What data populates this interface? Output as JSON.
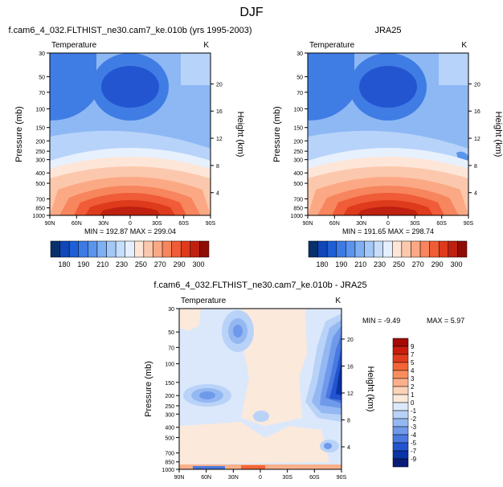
{
  "page": {
    "title": "DJF"
  },
  "chart_data": [
    {
      "type": "heatmap",
      "panel": "model",
      "title": "f.cam6_4_032.FLTHIST_ne30.cam7_ke.010b (yrs 1995-2003)",
      "subtitle_left": "Temperature",
      "subtitle_right": "K",
      "xlabel": "",
      "ylabel": "Pressure (mb)",
      "y2label": "Height (km)",
      "x_ticks": [
        "90N",
        "60N",
        "30N",
        "0",
        "30S",
        "60S",
        "90S"
      ],
      "y_ticks": [
        "30",
        "50",
        "70",
        "100",
        "150",
        "200",
        "250",
        "300",
        "400",
        "500",
        "700",
        "850",
        "1000"
      ],
      "y2_ticks": [
        "20",
        "16",
        "12",
        "8",
        "4"
      ],
      "stats": "MIN = 192.87  MAX = 299.04",
      "min": 192.87,
      "max": 299.04,
      "colorbar": {
        "orientation": "horizontal",
        "labels": [
          "180",
          "190",
          "210",
          "230",
          "250",
          "270",
          "290",
          "300"
        ]
      }
    },
    {
      "type": "heatmap",
      "panel": "obs",
      "title": "JRA25",
      "subtitle_left": "Temperature",
      "subtitle_right": "K",
      "xlabel": "",
      "ylabel": "Pressure (mb)",
      "y2label": "Height (km)",
      "x_ticks": [
        "90N",
        "60N",
        "30N",
        "0",
        "30S",
        "60S",
        "90S"
      ],
      "y_ticks": [
        "30",
        "50",
        "70",
        "100",
        "150",
        "200",
        "250",
        "300",
        "400",
        "500",
        "700",
        "850",
        "1000"
      ],
      "y2_ticks": [
        "20",
        "16",
        "12",
        "8",
        "4"
      ],
      "stats": "MIN = 191.65  MAX = 298.74",
      "min": 191.65,
      "max": 298.74,
      "colorbar": {
        "orientation": "horizontal",
        "labels": [
          "180",
          "190",
          "210",
          "230",
          "250",
          "270",
          "290",
          "300"
        ]
      }
    },
    {
      "type": "heatmap",
      "panel": "difference",
      "title": "f.cam6_4_032.FLTHIST_ne30.cam7_ke.010b - JRA25",
      "subtitle_left": "Temperature",
      "subtitle_right": "K",
      "xlabel": "",
      "ylabel": "Pressure (mb)",
      "y2label": "Height (km)",
      "x_ticks": [
        "90N",
        "60N",
        "30N",
        "0",
        "30S",
        "60S",
        "90S"
      ],
      "y_ticks": [
        "30",
        "50",
        "70",
        "100",
        "150",
        "200",
        "250",
        "300",
        "400",
        "500",
        "700",
        "850",
        "1000"
      ],
      "y2_ticks": [
        "20",
        "16",
        "12",
        "8",
        "4"
      ],
      "stats_min": "MIN =  -9.49",
      "stats_max": "MAX =   5.97",
      "min": -9.49,
      "max": 5.97,
      "colorbar": {
        "orientation": "vertical",
        "labels": [
          "9",
          "7",
          "5",
          "4",
          "3",
          "2",
          "1",
          "0",
          "-1",
          "-2",
          "-3",
          "-4",
          "-5",
          "-7",
          "-9"
        ]
      }
    }
  ],
  "colors": {
    "abs_scale": [
      "#08306b",
      "#1046b8",
      "#1f5fd6",
      "#3d7ae3",
      "#5a94ec",
      "#7fb0f3",
      "#a3c8f8",
      "#c6ddfb",
      "#e4efff",
      "#fde6d8",
      "#fcc8ad",
      "#fba985",
      "#f7855d",
      "#ef5c37",
      "#de3a1c",
      "#c0200f",
      "#8f0d05"
    ],
    "diff_scale": [
      "#a50a05",
      "#c81d0d",
      "#e23c1e",
      "#f56436",
      "#fb8d5c",
      "#fcb08a",
      "#fdd3b8",
      "#fbe9dc",
      "#dce9fb",
      "#b9d2f8",
      "#94b8f2",
      "#6f9aeb",
      "#4a79e0",
      "#2453cf",
      "#0a33a8",
      "#0b1c78"
    ]
  }
}
